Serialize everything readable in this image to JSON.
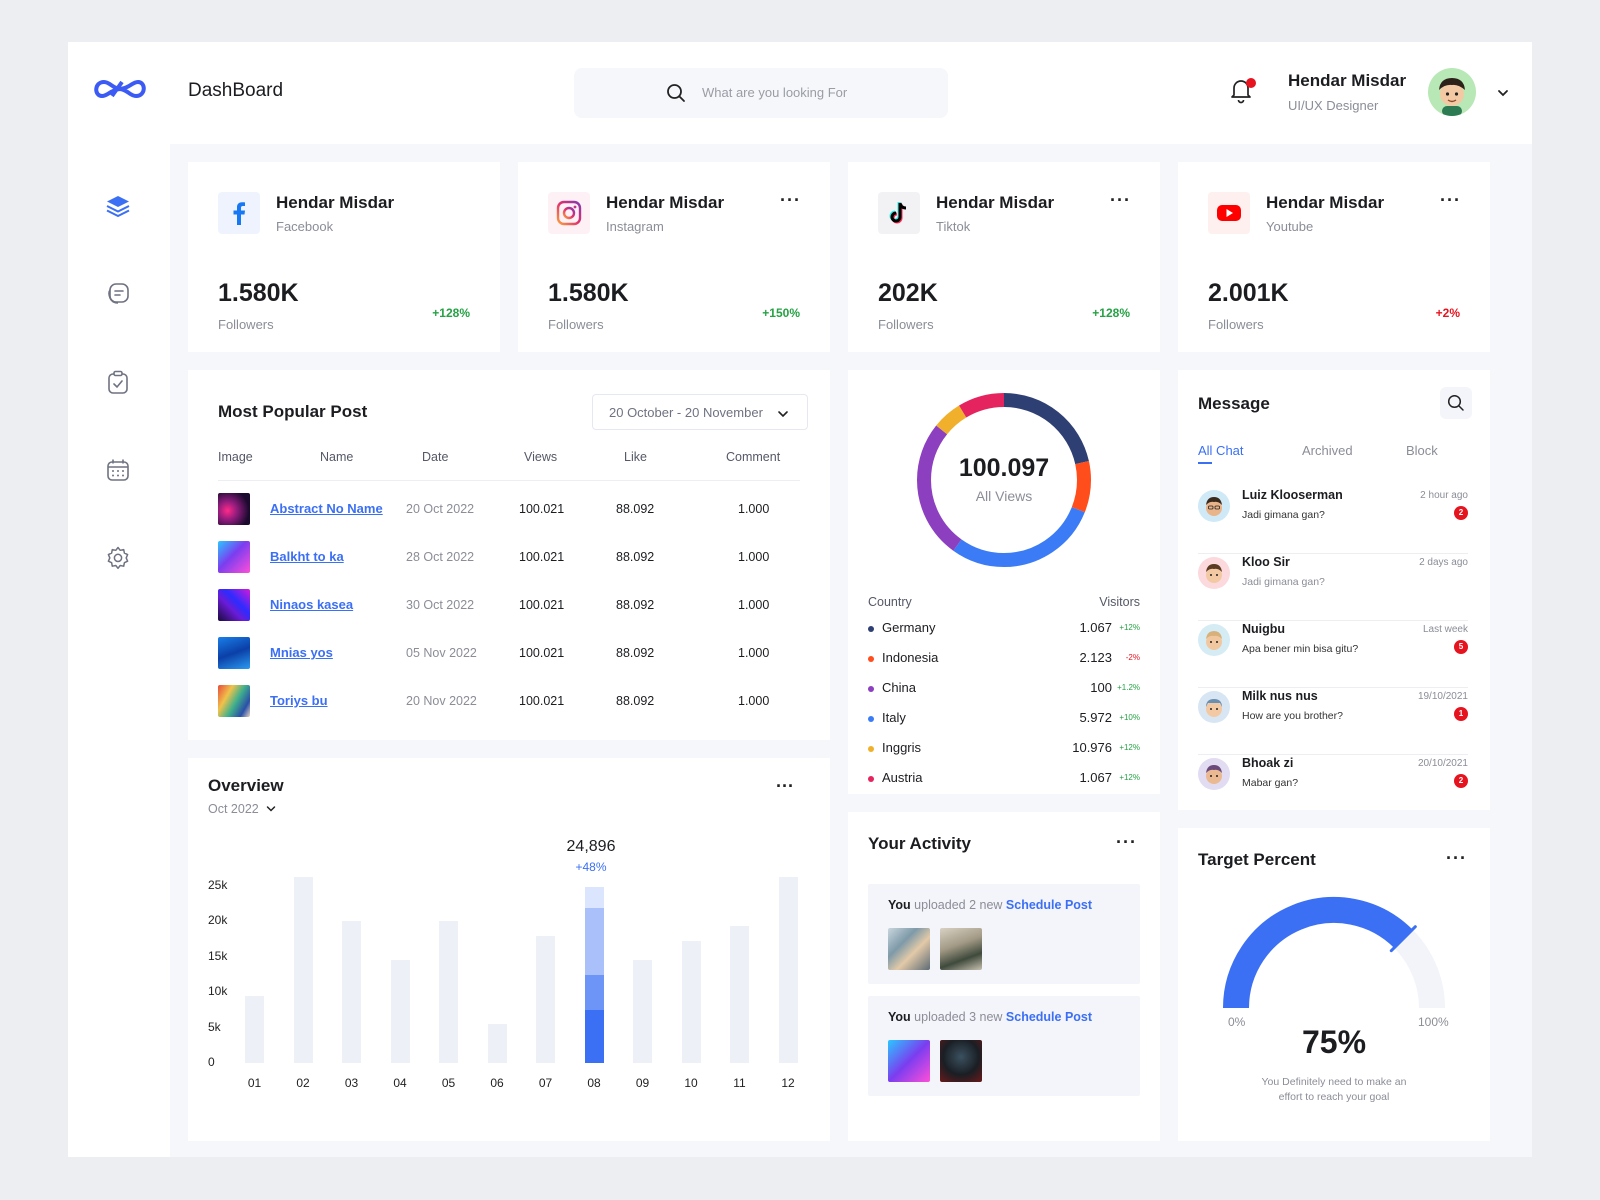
{
  "header": {
    "title": "DashBoard",
    "search_placeholder": "What are you looking For",
    "user_name": "Hendar Misdar",
    "user_role": "UI/UX Designer"
  },
  "socials": [
    {
      "name": "Hendar Misdar",
      "platform": "Facebook",
      "value": "1.580K",
      "label": "Followers",
      "change": "+128%",
      "change_color": "#25a244",
      "icon": "facebook-icon"
    },
    {
      "name": "Hendar Misdar",
      "platform": "Instagram",
      "value": "1.580K",
      "label": "Followers",
      "change": "+150%",
      "change_color": "#25a244",
      "icon": "instagram-icon"
    },
    {
      "name": "Hendar Misdar",
      "platform": "Tiktok",
      "value": "202K",
      "label": "Followers",
      "change": "+128%",
      "change_color": "#25a244",
      "icon": "tiktok-icon"
    },
    {
      "name": "Hendar Misdar",
      "platform": "Youtube",
      "value": "2.001K",
      "label": "Followers",
      "change": "+2%",
      "change_color": "#e5141f",
      "icon": "youtube-icon"
    }
  ],
  "popular": {
    "title": "Most Popular Post",
    "date_range": "20 October - 20 November",
    "columns": [
      "Image",
      "Name",
      "Date",
      "Views",
      "Like",
      "Comment"
    ],
    "rows": [
      {
        "name": "Abstract No Name",
        "date": "20 Oct 2022",
        "views": "100.021",
        "like": "88.092",
        "comment": "1.000"
      },
      {
        "name": "Balkht to ka",
        "date": "28 Oct 2022",
        "views": "100.021",
        "like": "88.092",
        "comment": "1.000"
      },
      {
        "name": "Ninaos kasea",
        "date": "30 Oct 2022",
        "views": "100.021",
        "like": "88.092",
        "comment": "1.000"
      },
      {
        "name": "Mnias yos",
        "date": "05 Nov 2022",
        "views": "100.021",
        "like": "88.092",
        "comment": "1.000"
      },
      {
        "name": "Toriys bu",
        "date": "20 Nov 2022",
        "views": "100.021",
        "like": "88.092",
        "comment": "1.000"
      }
    ]
  },
  "overview": {
    "title": "Overview",
    "period": "Oct 2022",
    "highlight_value": "24,896",
    "highlight_change": "+48%"
  },
  "chart_data": {
    "type": "bar",
    "categories": [
      "01",
      "02",
      "03",
      "04",
      "05",
      "06",
      "07",
      "08",
      "09",
      "10",
      "11",
      "12"
    ],
    "values": [
      9500,
      27000,
      20000,
      14500,
      20000,
      5500,
      18000,
      24896,
      14500,
      17200,
      19300,
      27000
    ],
    "highlight_index": 7,
    "yticks": [
      "25k",
      "20k",
      "15k",
      "10k",
      "5k",
      "0"
    ],
    "ylim": [
      0,
      25000
    ],
    "accent": "#3b6ff4"
  },
  "views": {
    "total": "100.097",
    "label": "All Views",
    "col_country": "Country",
    "col_visitors": "Visitors",
    "countries": [
      {
        "name": "Germany",
        "visitors": "1.067",
        "change": "+12%",
        "color": "#2e3f73",
        "change_color": "#25a244"
      },
      {
        "name": "Indonesia",
        "visitors": "2.123",
        "change": "-2%",
        "color": "#ff4d1c",
        "change_color": "#e5141f"
      },
      {
        "name": "China",
        "visitors": "100",
        "change": "+1.2%",
        "color": "#8c3fbf",
        "change_color": "#25a244"
      },
      {
        "name": "Italy",
        "visitors": "5.972",
        "change": "+10%",
        "color": "#3b7cf6",
        "change_color": "#25a244"
      },
      {
        "name": "Inggris",
        "visitors": "10.976",
        "change": "+12%",
        "color": "#f0b02c",
        "change_color": "#25a244"
      },
      {
        "name": "Austria",
        "visitors": "1.067",
        "change": "+12%",
        "color": "#e5245f",
        "change_color": "#25a244"
      }
    ]
  },
  "activity": {
    "title": "Your Activity",
    "items": [
      {
        "who": "You",
        "action": " uploaded 2 new ",
        "link": "Schedule Post"
      },
      {
        "who": "You",
        "action": " uploaded 3 new ",
        "link": "Schedule Post"
      }
    ]
  },
  "messages": {
    "title": "Message",
    "tabs": [
      "All Chat",
      "Archived",
      "Block"
    ],
    "items": [
      {
        "name": "Luiz Klooserman",
        "text": "Jadi gimana gan?",
        "time": "2 hour ago",
        "badge": "2",
        "avatar_color": "#cfe9f7"
      },
      {
        "name": "Kloo Sir",
        "text": "Jadi gimana gan?",
        "time": "2 days ago",
        "badge": "",
        "avatar_color": "#fbd9dc"
      },
      {
        "name": "Nuigbu",
        "text": "Apa bener min bisa gitu?",
        "time": "Last week",
        "badge": "5",
        "avatar_color": "#d5ecf5"
      },
      {
        "name": "Milk nus nus",
        "text": "How are you brother?",
        "time": "19/10/2021",
        "badge": "1",
        "avatar_color": "#d7e6f2"
      },
      {
        "name": "Bhoak zi",
        "text": "Mabar gan?",
        "time": "20/10/2021",
        "badge": "2",
        "avatar_color": "#e1dcf2"
      }
    ]
  },
  "target": {
    "title": "Target Percent",
    "percent": 75,
    "percent_label": "75%",
    "min": "0%",
    "max": "100%",
    "note_line1": "You Definitely need to make an",
    "note_line2": "effort to reach your goal"
  }
}
